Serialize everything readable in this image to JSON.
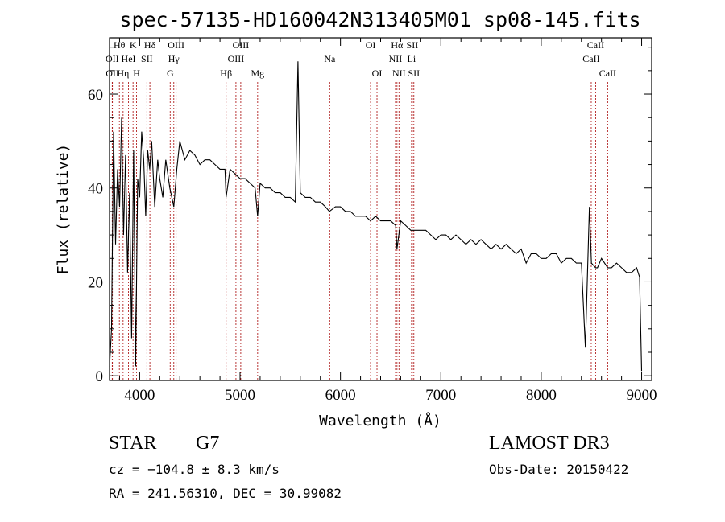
{
  "chart_data": {
    "type": "line",
    "title": "spec-57135-HD160042N313405M01_sp08-145.fits",
    "xlabel": "Wavelength (Å)",
    "ylabel": "Flux (relative)",
    "xlim": [
      3700,
      9100
    ],
    "ylim": [
      -1,
      72
    ],
    "x_ticks": [
      4000,
      5000,
      6000,
      7000,
      8000,
      9000
    ],
    "y_ticks": [
      0,
      20,
      40,
      60
    ],
    "series": [
      {
        "x": [
          3700,
          3720,
          3740,
          3760,
          3780,
          3800,
          3820,
          3840,
          3860,
          3880,
          3900,
          3920,
          3940,
          3960,
          3980,
          4000,
          4020,
          4040,
          4060,
          4080,
          4100,
          4120,
          4150,
          4180,
          4200,
          4230,
          4260,
          4300,
          4340,
          4370,
          4400,
          4450,
          4500,
          4550,
          4600,
          4650,
          4700,
          4750,
          4800,
          4850,
          4861,
          4900,
          4950,
          5000,
          5050,
          5100,
          5150,
          5175,
          5200,
          5250,
          5300,
          5350,
          5400,
          5450,
          5500,
          5550,
          5577,
          5600,
          5650,
          5700,
          5750,
          5800,
          5850,
          5890,
          5950,
          6000,
          6050,
          6100,
          6150,
          6200,
          6250,
          6300,
          6350,
          6400,
          6450,
          6500,
          6550,
          6563,
          6600,
          6650,
          6700,
          6750,
          6800,
          6850,
          6900,
          6950,
          7000,
          7050,
          7100,
          7150,
          7200,
          7250,
          7300,
          7350,
          7400,
          7450,
          7500,
          7550,
          7600,
          7650,
          7700,
          7750,
          7800,
          7850,
          7900,
          7950,
          8000,
          8050,
          8100,
          8150,
          8200,
          8250,
          8300,
          8350,
          8400,
          8440,
          8480,
          8500,
          8542,
          8560,
          8600,
          8662,
          8700,
          8750,
          8800,
          8850,
          8900,
          8950,
          8980,
          9000
        ],
        "y": [
          2,
          10,
          52,
          28,
          44,
          36,
          55,
          30,
          47,
          22,
          39,
          8,
          48,
          2,
          42,
          38,
          52,
          46,
          34,
          48,
          44,
          50,
          36,
          46,
          42,
          38,
          46,
          40,
          36,
          44,
          50,
          46,
          48,
          47,
          45,
          46,
          46,
          45,
          44,
          44,
          38,
          44,
          43,
          42,
          42,
          41,
          40,
          34,
          41,
          40,
          40,
          39,
          39,
          38,
          38,
          37,
          67,
          39,
          38,
          38,
          37,
          37,
          36,
          35,
          36,
          36,
          35,
          35,
          34,
          34,
          34,
          33,
          34,
          33,
          33,
          33,
          32,
          27,
          33,
          32,
          31,
          31,
          31,
          31,
          30,
          29,
          30,
          30,
          29,
          30,
          29,
          28,
          29,
          28,
          29,
          28,
          27,
          28,
          27,
          28,
          27,
          26,
          27,
          24,
          26,
          26,
          25,
          25,
          26,
          26,
          24,
          25,
          25,
          24,
          24,
          6,
          36,
          24,
          23,
          23,
          25,
          23,
          23,
          24,
          23,
          22,
          22,
          23,
          21,
          1
        ]
      }
    ],
    "line_markers": [
      {
        "label": "Hθ",
        "x": 3798,
        "row": 0
      },
      {
        "label": "K",
        "x": 3934,
        "row": 0
      },
      {
        "label": "Hδ",
        "x": 4102,
        "row": 0
      },
      {
        "label": "OIII",
        "x": 4363,
        "row": 0
      },
      {
        "label": "OIII",
        "x": 5007,
        "row": 0
      },
      {
        "label": "OI",
        "x": 6300,
        "row": 0
      },
      {
        "label": "Hα",
        "x": 6563,
        "row": 0
      },
      {
        "label": "SII",
        "x": 6716,
        "row": 0
      },
      {
        "label": "CaII",
        "x": 8542,
        "row": 0
      },
      {
        "label": "OII",
        "x": 3727,
        "row": 1
      },
      {
        "label": "HeI",
        "x": 3889,
        "row": 1
      },
      {
        "label": "SII",
        "x": 4072,
        "row": 1
      },
      {
        "label": "Hγ",
        "x": 4340,
        "row": 1
      },
      {
        "label": "OIII",
        "x": 4959,
        "row": 1
      },
      {
        "label": "Na",
        "x": 5893,
        "row": 1
      },
      {
        "label": "NII",
        "x": 6548,
        "row": 1
      },
      {
        "label": "Li",
        "x": 6708,
        "row": 1
      },
      {
        "label": "CaII",
        "x": 8498,
        "row": 1
      },
      {
        "label": "OII",
        "x": 3729,
        "row": 2
      },
      {
        "label": "Hη",
        "x": 3835,
        "row": 2
      },
      {
        "label": "H",
        "x": 3969,
        "row": 2
      },
      {
        "label": "G",
        "x": 4304,
        "row": 2
      },
      {
        "label": "Hβ",
        "x": 4861,
        "row": 2
      },
      {
        "label": "Mg",
        "x": 5175,
        "row": 2
      },
      {
        "label": "OI",
        "x": 6364,
        "row": 2
      },
      {
        "label": "NII",
        "x": 6583,
        "row": 2
      },
      {
        "label": "SII",
        "x": 6731,
        "row": 2
      },
      {
        "label": "CaII",
        "x": 8662,
        "row": 2
      }
    ]
  },
  "info": {
    "class": "STAR",
    "subclass": "G7",
    "survey": "LAMOST DR3",
    "cz": "cz = −104.8 ± 8.3 km/s",
    "obs_date": "Obs-Date: 20150422",
    "coords": "RA = 241.56310, DEC =  30.99082"
  }
}
